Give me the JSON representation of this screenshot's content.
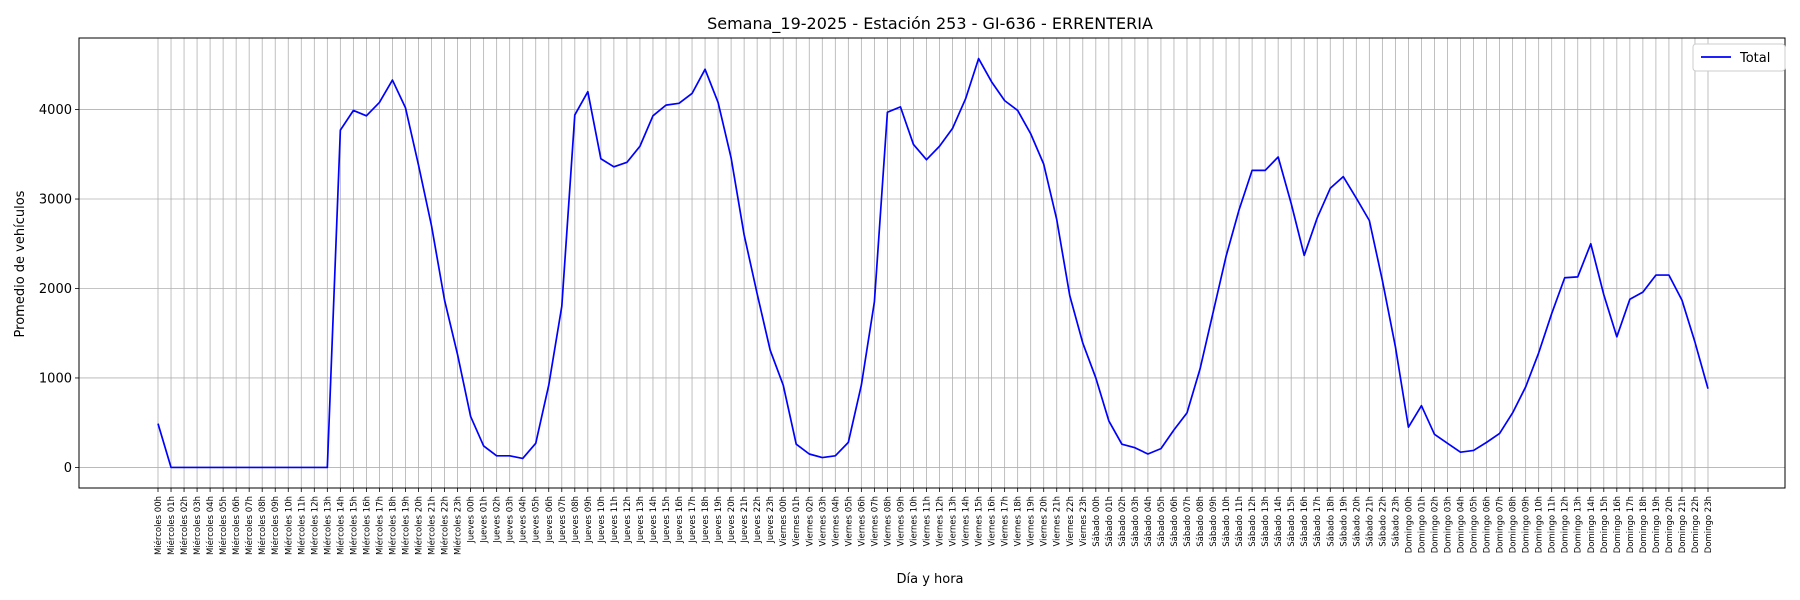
{
  "chart_data": {
    "type": "line",
    "title": "Semana_19-2025 - Estación 253 - GI-636  - ERRENTERIA",
    "xlabel": "Día y hora",
    "ylabel": "Promedio de vehículos",
    "ylim": [
      -230,
      4800
    ],
    "yticks": [
      0,
      1000,
      2000,
      3000,
      4000
    ],
    "grid": true,
    "legend": "top-right",
    "colors": {
      "line": "#0000ff",
      "grid": "#b0b0b0"
    },
    "categories": [
      "Miércoles 00h",
      "Miércoles 01h",
      "Miércoles 02h",
      "Miércoles 03h",
      "Miércoles 04h",
      "Miércoles 05h",
      "Miércoles 06h",
      "Miércoles 07h",
      "Miércoles 08h",
      "Miércoles 09h",
      "Miércoles 10h",
      "Miércoles 11h",
      "Miércoles 12h",
      "Miércoles 13h",
      "Miércoles 14h",
      "Miércoles 15h",
      "Miércoles 16h",
      "Miércoles 17h",
      "Miércoles 18h",
      "Miércoles 19h",
      "Miércoles 20h",
      "Miércoles 21h",
      "Miércoles 22h",
      "Miércoles 23h",
      "Jueves 00h",
      "Jueves 01h",
      "Jueves 02h",
      "Jueves 03h",
      "Jueves 04h",
      "Jueves 05h",
      "Jueves 06h",
      "Jueves 07h",
      "Jueves 08h",
      "Jueves 09h",
      "Jueves 10h",
      "Jueves 11h",
      "Jueves 12h",
      "Jueves 13h",
      "Jueves 14h",
      "Jueves 15h",
      "Jueves 16h",
      "Jueves 17h",
      "Jueves 18h",
      "Jueves 19h",
      "Jueves 20h",
      "Jueves 21h",
      "Jueves 22h",
      "Jueves 23h",
      "Viernes 00h",
      "Viernes 01h",
      "Viernes 02h",
      "Viernes 03h",
      "Viernes 04h",
      "Viernes 05h",
      "Viernes 06h",
      "Viernes 07h",
      "Viernes 08h",
      "Viernes 09h",
      "Viernes 10h",
      "Viernes 11h",
      "Viernes 12h",
      "Viernes 13h",
      "Viernes 14h",
      "Viernes 15h",
      "Viernes 16h",
      "Viernes 17h",
      "Viernes 18h",
      "Viernes 19h",
      "Viernes 20h",
      "Viernes 21h",
      "Viernes 22h",
      "Viernes 23h",
      "Sábado 00h",
      "Sábado 01h",
      "Sábado 02h",
      "Sábado 03h",
      "Sábado 04h",
      "Sábado 05h",
      "Sábado 06h",
      "Sábado 07h",
      "Sábado 08h",
      "Sábado 09h",
      "Sábado 10h",
      "Sábado 11h",
      "Sábado 12h",
      "Sábado 13h",
      "Sábado 14h",
      "Sábado 15h",
      "Sábado 16h",
      "Sábado 17h",
      "Sábado 18h",
      "Sábado 19h",
      "Sábado 20h",
      "Sábado 21h",
      "Sábado 22h",
      "Sábado 23h",
      "Domingo 00h",
      "Domingo 01h",
      "Domingo 02h",
      "Domingo 03h",
      "Domingo 04h",
      "Domingo 05h",
      "Domingo 06h",
      "Domingo 07h",
      "Domingo 08h",
      "Domingo 09h",
      "Domingo 10h",
      "Domingo 11h",
      "Domingo 12h",
      "Domingo 13h",
      "Domingo 14h",
      "Domingo 15h",
      "Domingo 16h",
      "Domingo 17h",
      "Domingo 18h",
      "Domingo 19h",
      "Domingo 20h",
      "Domingo 21h",
      "Domingo 22h",
      "Domingo 23h"
    ],
    "series": [
      {
        "name": "Total",
        "values": [
          490,
          0,
          0,
          0,
          0,
          0,
          0,
          0,
          0,
          0,
          0,
          0,
          0,
          0,
          3770,
          3990,
          3930,
          4080,
          4330,
          4020,
          3380,
          2700,
          1870,
          1260,
          570,
          240,
          130,
          130,
          100,
          270,
          920,
          1800,
          3940,
          4200,
          3450,
          3360,
          3410,
          3590,
          3930,
          4050,
          4070,
          4180,
          4450,
          4080,
          3460,
          2600,
          1940,
          1310,
          920,
          260,
          150,
          110,
          130,
          280,
          920,
          1850,
          3970,
          4030,
          3610,
          3440,
          3590,
          3790,
          4120,
          4570,
          4310,
          4100,
          3990,
          3730,
          3390,
          2770,
          1920,
          1390,
          1000,
          520,
          260,
          220,
          150,
          210,
          420,
          610,
          1100,
          1730,
          2360,
          2880,
          3320,
          3320,
          3470,
          2950,
          2370,
          2790,
          3120,
          3250,
          3010,
          2760,
          2090,
          1350,
          450,
          690,
          370,
          270,
          170,
          190,
          280,
          380,
          610,
          900,
          1280,
          1720,
          2120,
          2130,
          2500,
          1930,
          1460,
          1880,
          1960,
          2150,
          2150,
          1870,
          1400,
          880
        ]
      }
    ]
  }
}
